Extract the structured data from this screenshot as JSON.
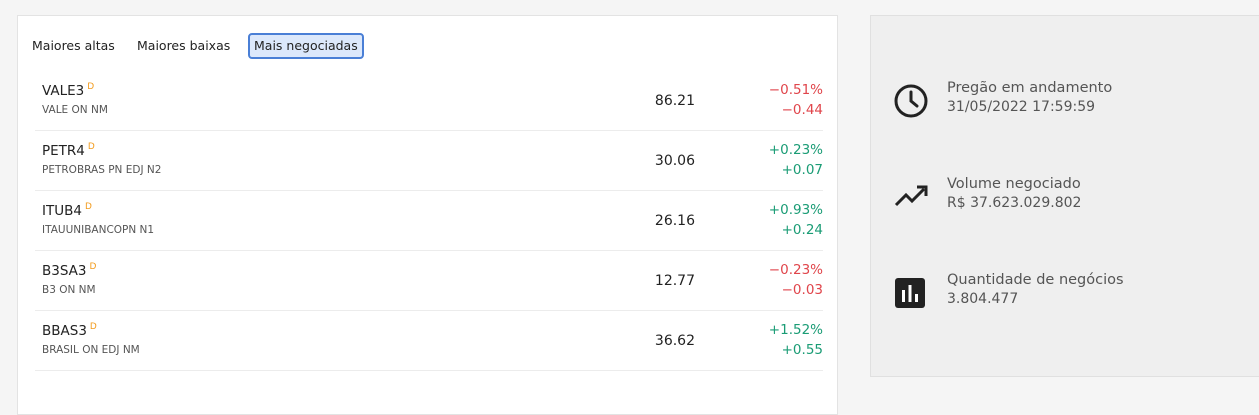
{
  "tabs": [
    "Maiores altas",
    "Maiores baixas",
    "Mais negociadas"
  ],
  "active_tab": 2,
  "table": {
    "rows": [
      {
        "ticker": "VALE3",
        "badge": "D",
        "name": "VALE ON NM",
        "price": "86.21",
        "change_pct": "−0.51%",
        "change": "−0.44"
      },
      {
        "ticker": "PETR4",
        "badge": "D",
        "name": "PETROBRAS PN EDJ N2",
        "price": "30.06",
        "change_pct": "+0.23%",
        "change": "+0.07"
      },
      {
        "ticker": "ITUB4",
        "badge": "D",
        "name": "ITAUUNIBANCOPN N1",
        "price": "26.16",
        "change_pct": "+0.93%",
        "change": "+0.24"
      },
      {
        "ticker": "B3SA3",
        "badge": "D",
        "name": "B3 ON NM",
        "price": "12.77",
        "change_pct": "−0.23%",
        "change": "−0.03"
      },
      {
        "ticker": "BBAS3",
        "badge": "D",
        "name": "BRASIL ON EDJ NM",
        "price": "36.62",
        "change_pct": "+1.52%",
        "change": "+0.55"
      }
    ]
  },
  "stats": [
    {
      "label": "Pregão em andamento",
      "value": "31/05/2022 17:59:59"
    },
    {
      "label": "Volume negociado",
      "value": "R$ 37.623.029.802"
    },
    {
      "label": "Quantidade de negócios",
      "value": "3.804.477"
    }
  ]
}
